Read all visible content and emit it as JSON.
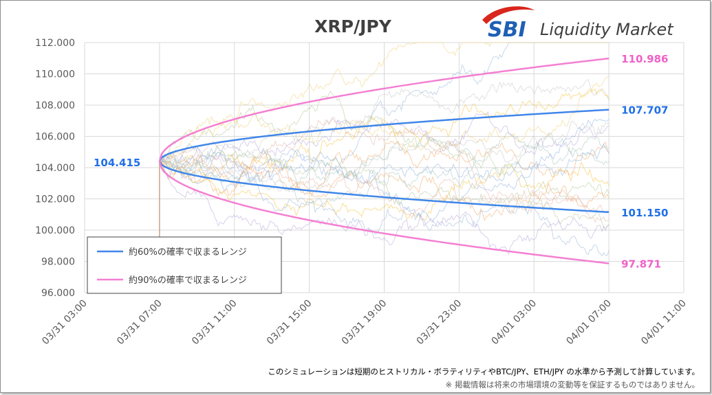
{
  "chart_data": {
    "type": "line",
    "title": "XRP/JPY",
    "y_tick_labels": [
      "96.000",
      "98.000",
      "100.000",
      "102.000",
      "104.000",
      "106.000",
      "108.000",
      "110.000",
      "112.000"
    ],
    "y_ticks": [
      96,
      98,
      100,
      102,
      104,
      106,
      108,
      110,
      112
    ],
    "ylim": [
      96,
      112
    ],
    "x_tick_labels": [
      "03/31 03:00",
      "03/31 07:00",
      "03/31 11:00",
      "03/31 15:00",
      "03/31 19:00",
      "03/31 23:00",
      "04/01 03:00",
      "04/01 07:00",
      "04/01 11:00"
    ],
    "x_ticks_hours": [
      0,
      4,
      8,
      12,
      16,
      20,
      24,
      28,
      32
    ],
    "start_hour": 4,
    "end_hour": 28,
    "start_price": 104.415,
    "start_label": "104.415",
    "grid": true,
    "legend_position": "bottom-left",
    "series": [
      {
        "name": "約60%の確率で収まるレンジ",
        "color": "#3f86e9",
        "upper_end": 107.707,
        "lower_end": 101.15,
        "upper_label": "107.707",
        "lower_label": "101.150"
      },
      {
        "name": "約90%の確率で収まるレンジ",
        "color": "#f47fd2",
        "upper_end": 110.986,
        "lower_end": 97.871,
        "upper_label": "110.986",
        "lower_label": "97.871"
      }
    ],
    "simulation_paths": 20
  },
  "logo": {
    "brand": "SBI",
    "name": "Liquidity Market",
    "brand_color": "#1f5fb4",
    "swoosh_color": "#d9261c"
  },
  "footnotes": [
    "このシミュレーションは短期のヒストリカル・ボラティリティやBTC/JPY、ETH/JPY の水準から予測して計算しています。",
    "※ 掲載情報は将来の市場環境の変動等を保証するものではありません。"
  ],
  "colors": {
    "grid": "#d9d9d9",
    "axis_text": "#595959",
    "start_label": "#1f6fe8"
  }
}
